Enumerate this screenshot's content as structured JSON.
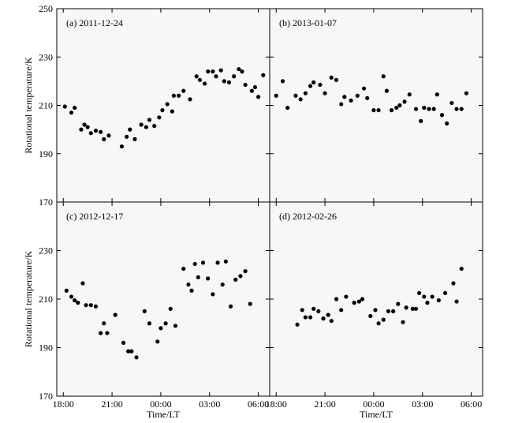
{
  "chart_data": {
    "type": "scatter",
    "ylabel": "Rotational temperature/K",
    "xlabel": "Time/LT",
    "ylim": [
      170,
      250
    ],
    "yticks": [
      170,
      190,
      210,
      230,
      250
    ],
    "xlim": [
      17.6,
      30.7
    ],
    "xticks": [
      18,
      21,
      24,
      27,
      30
    ],
    "xtick_labels": [
      "18:00",
      "21:00",
      "00:00",
      "03:00",
      "06:00"
    ],
    "marker_color": "#000000",
    "panels": [
      {
        "title": "(a) 2011-12-24",
        "points": [
          [
            18.1,
            209.5
          ],
          [
            18.5,
            207.0
          ],
          [
            18.7,
            209.0
          ],
          [
            19.1,
            200.0
          ],
          [
            19.3,
            202.0
          ],
          [
            19.5,
            201.0
          ],
          [
            19.7,
            198.5
          ],
          [
            20.0,
            199.5
          ],
          [
            20.3,
            199.0
          ],
          [
            20.5,
            196.0
          ],
          [
            20.8,
            197.5
          ],
          [
            21.6,
            193.0
          ],
          [
            21.9,
            197.0
          ],
          [
            22.1,
            200.0
          ],
          [
            22.4,
            196.0
          ],
          [
            22.8,
            202.0
          ],
          [
            23.1,
            201.0
          ],
          [
            23.3,
            204.0
          ],
          [
            23.6,
            201.5
          ],
          [
            23.9,
            205.0
          ],
          [
            24.1,
            208.0
          ],
          [
            24.4,
            210.5
          ],
          [
            24.7,
            207.5
          ],
          [
            24.8,
            214.0
          ],
          [
            25.1,
            214.0
          ],
          [
            25.4,
            216.0
          ],
          [
            25.8,
            212.5
          ],
          [
            26.2,
            222.0
          ],
          [
            26.4,
            220.5
          ],
          [
            26.7,
            219.0
          ],
          [
            26.9,
            224.0
          ],
          [
            27.2,
            224.0
          ],
          [
            27.4,
            222.0
          ],
          [
            27.7,
            224.5
          ],
          [
            27.9,
            220.0
          ],
          [
            28.2,
            219.5
          ],
          [
            28.5,
            222.0
          ],
          [
            28.8,
            225.0
          ],
          [
            29.0,
            224.0
          ],
          [
            29.2,
            218.5
          ],
          [
            29.6,
            216.0
          ],
          [
            29.8,
            217.5
          ],
          [
            30.0,
            213.5
          ],
          [
            30.3,
            222.5
          ]
        ]
      },
      {
        "title": "(b) 2013-01-07",
        "points": [
          [
            18.0,
            214.0
          ],
          [
            18.4,
            220.0
          ],
          [
            18.7,
            209.0
          ],
          [
            19.2,
            214.0
          ],
          [
            19.5,
            212.5
          ],
          [
            19.8,
            215.0
          ],
          [
            20.1,
            218.0
          ],
          [
            20.3,
            219.5
          ],
          [
            20.7,
            218.5
          ],
          [
            21.0,
            215.0
          ],
          [
            21.4,
            221.5
          ],
          [
            21.7,
            220.5
          ],
          [
            22.0,
            210.5
          ],
          [
            22.2,
            213.5
          ],
          [
            22.6,
            212.0
          ],
          [
            23.0,
            214.0
          ],
          [
            23.4,
            217.0
          ],
          [
            23.6,
            213.0
          ],
          [
            24.0,
            208.0
          ],
          [
            24.3,
            208.0
          ],
          [
            24.6,
            222.0
          ],
          [
            24.8,
            216.0
          ],
          [
            25.1,
            208.0
          ],
          [
            25.4,
            209.0
          ],
          [
            25.6,
            210.0
          ],
          [
            25.9,
            211.5
          ],
          [
            26.2,
            214.5
          ],
          [
            26.6,
            208.5
          ],
          [
            26.9,
            203.5
          ],
          [
            27.1,
            209.0
          ],
          [
            27.4,
            208.5
          ],
          [
            27.7,
            208.5
          ],
          [
            27.9,
            214.5
          ],
          [
            28.2,
            206.0
          ],
          [
            28.5,
            202.5
          ],
          [
            28.8,
            211.0
          ],
          [
            29.1,
            208.5
          ],
          [
            29.4,
            208.5
          ],
          [
            29.7,
            215.0
          ]
        ]
      },
      {
        "title": "(c) 2012-12-17",
        "points": [
          [
            18.2,
            213.5
          ],
          [
            18.5,
            211.0
          ],
          [
            18.7,
            209.5
          ],
          [
            18.9,
            208.5
          ],
          [
            19.2,
            216.5
          ],
          [
            19.4,
            207.5
          ],
          [
            19.7,
            207.5
          ],
          [
            20.0,
            207.0
          ],
          [
            20.3,
            196.0
          ],
          [
            20.5,
            200.0
          ],
          [
            20.7,
            196.0
          ],
          [
            21.2,
            203.5
          ],
          [
            21.7,
            192.0
          ],
          [
            22.0,
            188.5
          ],
          [
            22.2,
            188.5
          ],
          [
            22.5,
            186.0
          ],
          [
            23.0,
            205.0
          ],
          [
            23.3,
            200.0
          ],
          [
            23.8,
            192.5
          ],
          [
            24.0,
            198.0
          ],
          [
            24.3,
            200.0
          ],
          [
            24.6,
            206.0
          ],
          [
            24.9,
            199.0
          ],
          [
            25.4,
            222.5
          ],
          [
            25.7,
            216.0
          ],
          [
            25.9,
            213.5
          ],
          [
            26.1,
            224.5
          ],
          [
            26.3,
            219.0
          ],
          [
            26.6,
            225.0
          ],
          [
            26.9,
            218.5
          ],
          [
            27.2,
            212.0
          ],
          [
            27.5,
            225.0
          ],
          [
            27.8,
            216.0
          ],
          [
            28.0,
            225.5
          ],
          [
            28.3,
            207.0
          ],
          [
            28.6,
            218.0
          ],
          [
            28.9,
            219.5
          ],
          [
            29.2,
            221.5
          ],
          [
            29.5,
            208.0
          ]
        ]
      },
      {
        "title": "(d) 2012-02-26",
        "points": [
          [
            19.3,
            199.5
          ],
          [
            19.6,
            205.5
          ],
          [
            19.8,
            202.5
          ],
          [
            20.1,
            202.5
          ],
          [
            20.3,
            206.0
          ],
          [
            20.6,
            205.0
          ],
          [
            20.9,
            202.0
          ],
          [
            21.2,
            203.5
          ],
          [
            21.4,
            201.0
          ],
          [
            21.7,
            210.0
          ],
          [
            22.0,
            205.5
          ],
          [
            22.3,
            211.0
          ],
          [
            22.8,
            208.5
          ],
          [
            23.1,
            209.0
          ],
          [
            23.3,
            210.0
          ],
          [
            23.8,
            203.0
          ],
          [
            24.1,
            205.5
          ],
          [
            24.3,
            200.0
          ],
          [
            24.6,
            201.5
          ],
          [
            24.9,
            205.0
          ],
          [
            25.2,
            205.0
          ],
          [
            25.5,
            208.0
          ],
          [
            25.8,
            200.5
          ],
          [
            26.0,
            206.5
          ],
          [
            26.4,
            206.0
          ],
          [
            26.6,
            206.0
          ],
          [
            26.8,
            212.5
          ],
          [
            27.1,
            211.0
          ],
          [
            27.3,
            208.5
          ],
          [
            27.6,
            211.0
          ],
          [
            28.0,
            209.5
          ],
          [
            28.4,
            212.5
          ],
          [
            28.9,
            216.5
          ],
          [
            29.1,
            209.0
          ],
          [
            29.4,
            222.5
          ]
        ]
      }
    ]
  }
}
